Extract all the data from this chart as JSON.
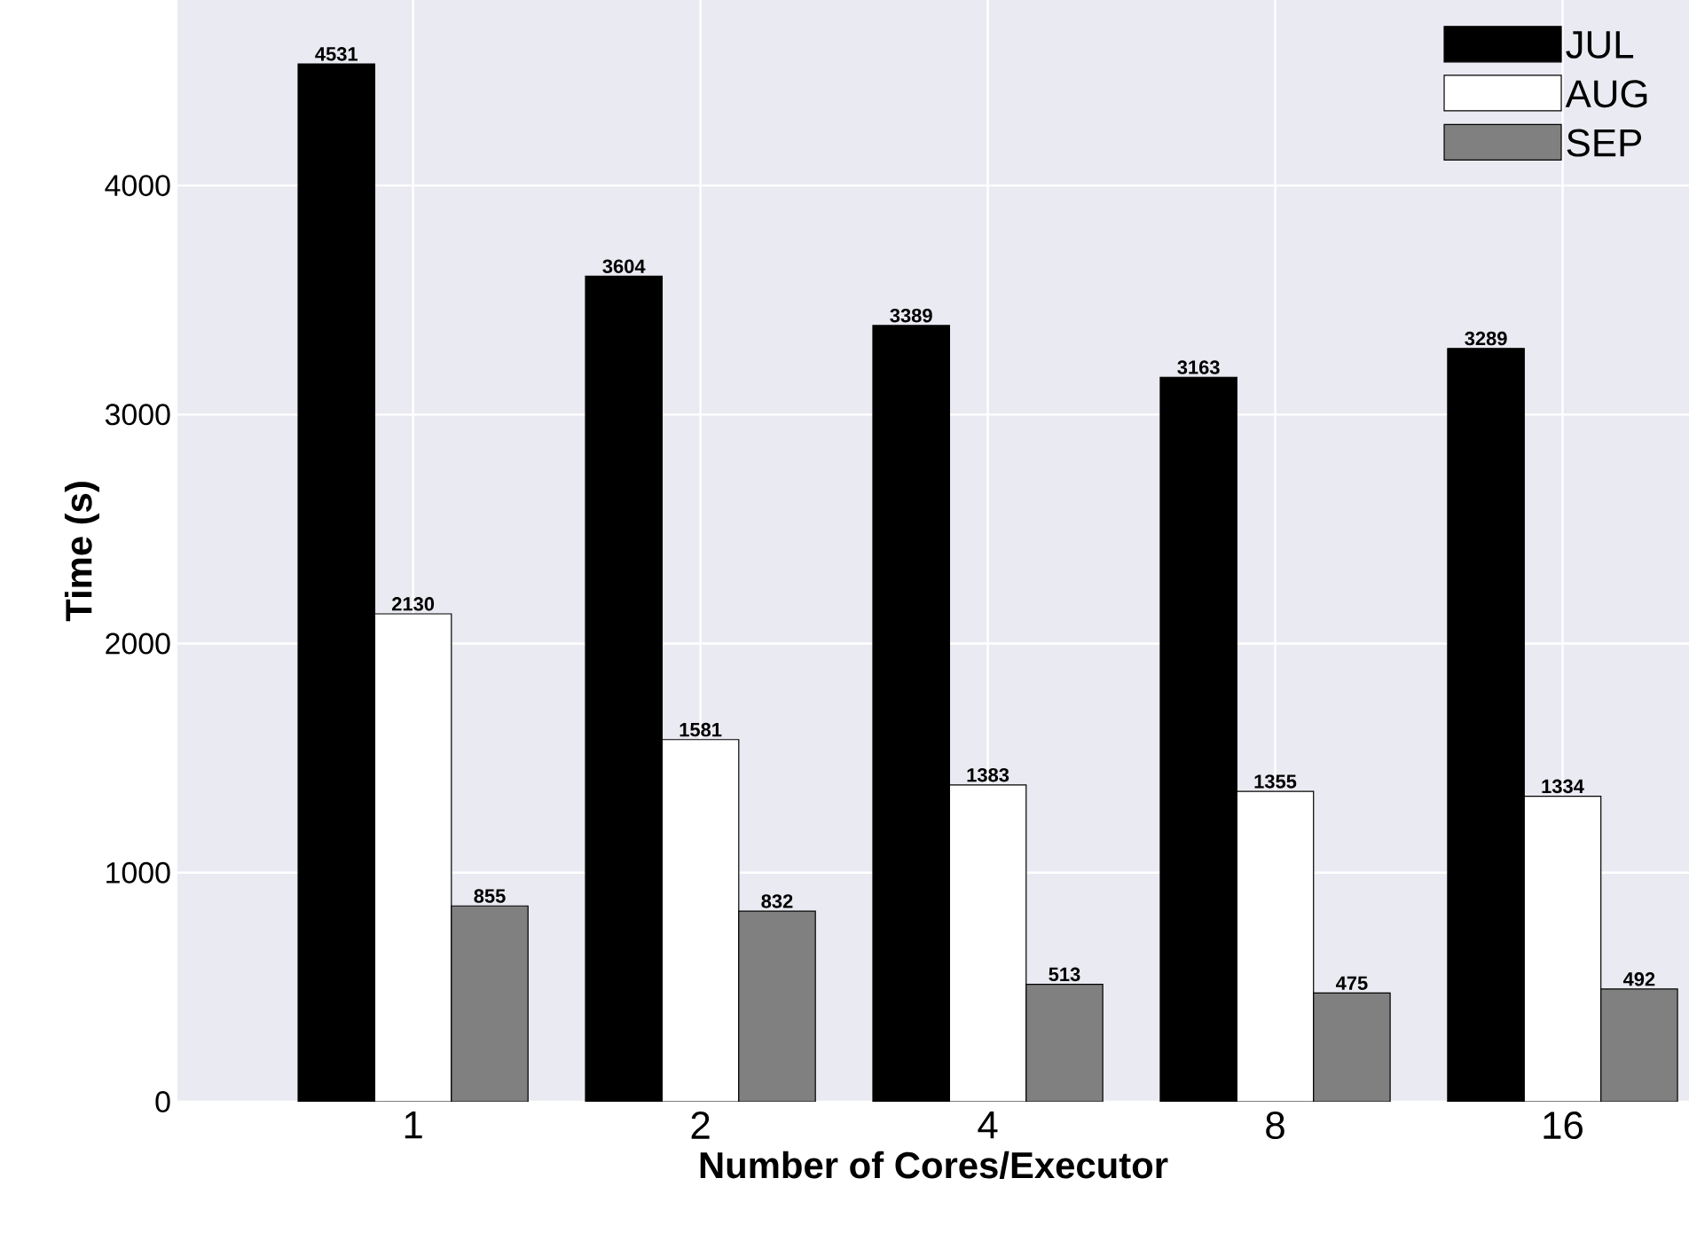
{
  "chart_data": {
    "type": "bar",
    "xlabel": "Number of Cores/Executor",
    "ylabel": "Time (s)",
    "categories": [
      "1",
      "2",
      "4",
      "8",
      "16"
    ],
    "series": [
      {
        "name": "JUL",
        "color": "#000000",
        "values": [
          4531,
          3604,
          3389,
          3163,
          3289
        ]
      },
      {
        "name": "AUG",
        "color": "#ffffff",
        "values": [
          2130,
          1581,
          1383,
          1355,
          1334
        ]
      },
      {
        "name": "SEP",
        "color": "#808080",
        "values": [
          855,
          832,
          513,
          475,
          492
        ]
      }
    ],
    "ylim": [
      0,
      4810
    ],
    "yticks": [
      0,
      1000,
      2000,
      3000,
      4000
    ],
    "grid": true,
    "legend": "top right",
    "data_labels": true
  }
}
